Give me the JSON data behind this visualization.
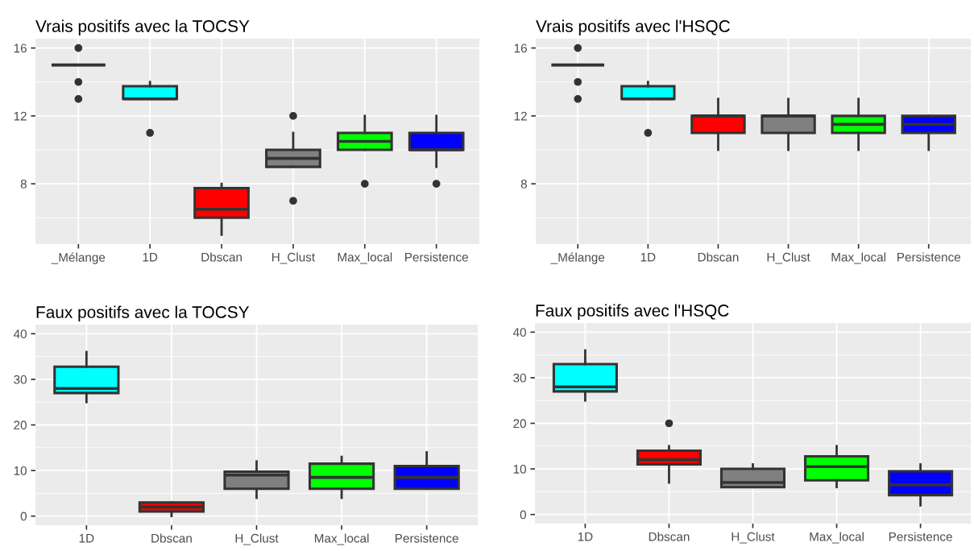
{
  "chart_data": [
    {
      "type": "box",
      "title": "Vrais positifs avec la TOCSY",
      "categories": [
        "_Mélange",
        "1D",
        "Dbscan",
        "H_Clust",
        "Max_local",
        "Persistence"
      ],
      "colors": [
        "#333333",
        "#00ffff",
        "#ff0000",
        "#808080",
        "#00ff00",
        "#0000ff"
      ],
      "ylim": [
        4.45,
        16.55
      ],
      "yticks": [
        8,
        12,
        16
      ],
      "grid": true,
      "boxes": [
        {
          "low": 15,
          "q1": 15,
          "median": 15,
          "q3": 15,
          "high": 15,
          "outliers": [
            16,
            14,
            13
          ]
        },
        {
          "low": 13,
          "q1": 13,
          "median": 13,
          "q3": 13.75,
          "high": 14,
          "outliers": [
            11
          ]
        },
        {
          "low": 5,
          "q1": 6,
          "median": 6.5,
          "q3": 7.75,
          "high": 8
        },
        {
          "low": 9,
          "q1": 9,
          "median": 9.5,
          "q3": 10,
          "high": 11,
          "outliers": [
            12,
            7
          ]
        },
        {
          "low": 10,
          "q1": 10,
          "median": 10.5,
          "q3": 11,
          "high": 12,
          "outliers": [
            8
          ]
        },
        {
          "low": 9,
          "q1": 10,
          "median": 10,
          "q3": 11,
          "high": 12,
          "outliers": [
            8
          ]
        }
      ]
    },
    {
      "type": "box",
      "title": "Vrais positifs avec l'HSQC",
      "categories": [
        "_Mélange",
        "1D",
        "Dbscan",
        "H_Clust",
        "Max_local",
        "Persistence"
      ],
      "colors": [
        "#333333",
        "#00ffff",
        "#ff0000",
        "#808080",
        "#00ff00",
        "#0000ff"
      ],
      "ylim": [
        4.45,
        16.55
      ],
      "yticks": [
        8,
        12,
        16
      ],
      "grid": true,
      "boxes": [
        {
          "low": 15,
          "q1": 15,
          "median": 15,
          "q3": 15,
          "high": 15,
          "outliers": [
            16,
            14,
            13
          ]
        },
        {
          "low": 13,
          "q1": 13,
          "median": 13,
          "q3": 13.75,
          "high": 14,
          "outliers": [
            11
          ]
        },
        {
          "low": 10,
          "q1": 11,
          "median": 12,
          "q3": 12,
          "high": 13
        },
        {
          "low": 10,
          "q1": 11,
          "median": 12,
          "q3": 12,
          "high": 13
        },
        {
          "low": 10,
          "q1": 11,
          "median": 11.5,
          "q3": 12,
          "high": 13
        },
        {
          "low": 10,
          "q1": 11,
          "median": 11.5,
          "q3": 12,
          "high": 12
        }
      ]
    },
    {
      "type": "box",
      "title": "Faux positifs avec la TOCSY",
      "categories": [
        "1D",
        "Dbscan",
        "H_Clust",
        "Max_local",
        "Persistence"
      ],
      "colors": [
        "#00ffff",
        "#ff0000",
        "#808080",
        "#00ff00",
        "#0000ff"
      ],
      "ylim": [
        -2,
        42
      ],
      "yticks": [
        0,
        10,
        20,
        30,
        40
      ],
      "grid": true,
      "boxes": [
        {
          "low": 25,
          "q1": 27,
          "median": 28,
          "q3": 32.75,
          "high": 36
        },
        {
          "low": 0,
          "q1": 1,
          "median": 2,
          "q3": 3,
          "high": 3
        },
        {
          "low": 4,
          "q1": 6,
          "median": 9,
          "q3": 9.75,
          "high": 12
        },
        {
          "low": 4,
          "q1": 6,
          "median": 8.5,
          "q3": 11.5,
          "high": 13
        },
        {
          "low": 6,
          "q1": 6,
          "median": 8.5,
          "q3": 11,
          "high": 14
        }
      ]
    },
    {
      "type": "box",
      "title": "Faux positifs avec l'HSQC",
      "categories": [
        "1D",
        "Dbscan",
        "H_Clust",
        "Max_local",
        "Persistence"
      ],
      "colors": [
        "#00ffff",
        "#ff0000",
        "#808080",
        "#00ff00",
        "#0000ff"
      ],
      "ylim": [
        -2,
        42
      ],
      "yticks": [
        0,
        10,
        20,
        30,
        40
      ],
      "grid": true,
      "boxes": [
        {
          "low": 25,
          "q1": 27,
          "median": 28,
          "q3": 33,
          "high": 36
        },
        {
          "low": 7,
          "q1": 11,
          "median": 12,
          "q3": 14,
          "high": 15,
          "outliers": [
            20
          ]
        },
        {
          "low": 6,
          "q1": 6,
          "median": 7,
          "q3": 10,
          "high": 11
        },
        {
          "low": 6,
          "q1": 7.5,
          "median": 10.5,
          "q3": 12.75,
          "high": 15
        },
        {
          "low": 2,
          "q1": 4.25,
          "median": 6.5,
          "q3": 9.5,
          "high": 11
        }
      ]
    }
  ]
}
